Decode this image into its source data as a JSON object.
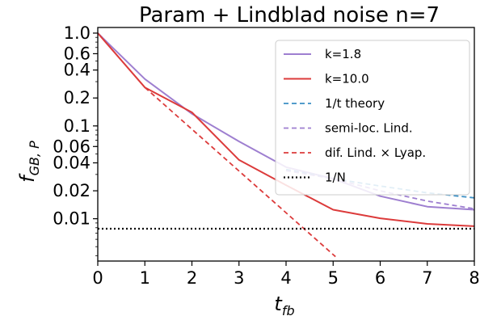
{
  "chart_data": {
    "type": "line",
    "title": "Param + Lindblad noise n=7",
    "xlabel": "t",
    "xlabel_sub": "fb",
    "ylabel": "f",
    "ylabel_sub": "GB, P",
    "xlim": [
      0,
      8
    ],
    "ylim": [
      0.0035,
      1.15
    ],
    "yscale": "log",
    "x_ticks": [
      0,
      1,
      2,
      3,
      4,
      5,
      6,
      7,
      8
    ],
    "y_ticks": [
      {
        "value": 1.0,
        "label": "1.0"
      },
      {
        "value": 0.6,
        "label": "0.6"
      },
      {
        "value": 0.4,
        "label": "0.4"
      },
      {
        "value": 0.2,
        "label": "0.2"
      },
      {
        "value": 0.1,
        "label": "0.1"
      },
      {
        "value": 0.06,
        "label": "0.06"
      },
      {
        "value": 0.04,
        "label": "0.04"
      },
      {
        "value": 0.02,
        "label": "0.02"
      },
      {
        "value": 0.01,
        "label": "0.01"
      }
    ],
    "legend_position": "top-right",
    "series": [
      {
        "name": "k=1.8",
        "color": "#9e7fd0",
        "dash": "solid",
        "x": [
          0,
          1,
          2,
          3,
          4,
          5,
          6,
          7,
          8
        ],
        "y": [
          1.0,
          0.32,
          0.135,
          0.068,
          0.036,
          0.027,
          0.0175,
          0.0135,
          0.0125
        ]
      },
      {
        "name": "k=10.0",
        "color": "#dc3b3b",
        "dash": "solid",
        "x": [
          0,
          1,
          2,
          3,
          4,
          5,
          6,
          7,
          8
        ],
        "y": [
          1.0,
          0.26,
          0.14,
          0.043,
          0.023,
          0.0125,
          0.0101,
          0.0088,
          0.0083
        ]
      },
      {
        "name": "1/t theory",
        "color": "#3b8fc4",
        "dash": "dashed",
        "x": [
          4,
          5,
          6,
          7,
          8
        ],
        "y": [
          0.034,
          0.027,
          0.0225,
          0.019,
          0.0168
        ]
      },
      {
        "name": "semi-loc. Lind.",
        "color": "#9e7fd0",
        "dash": "dashed",
        "x": [
          4,
          5,
          6,
          7,
          8
        ],
        "y": [
          0.033,
          0.027,
          0.02,
          0.0155,
          0.0128
        ]
      },
      {
        "name": "dif. Lind. × Lyap.",
        "color": "#dc3b3b",
        "dash": "dashed",
        "x": [
          1,
          5.05
        ],
        "y": [
          0.26,
          0.0039
        ]
      },
      {
        "name": "1/N",
        "color": "#000000",
        "dash": "dotted",
        "x": [
          0,
          8
        ],
        "y": [
          0.0078,
          0.0078
        ]
      }
    ]
  }
}
